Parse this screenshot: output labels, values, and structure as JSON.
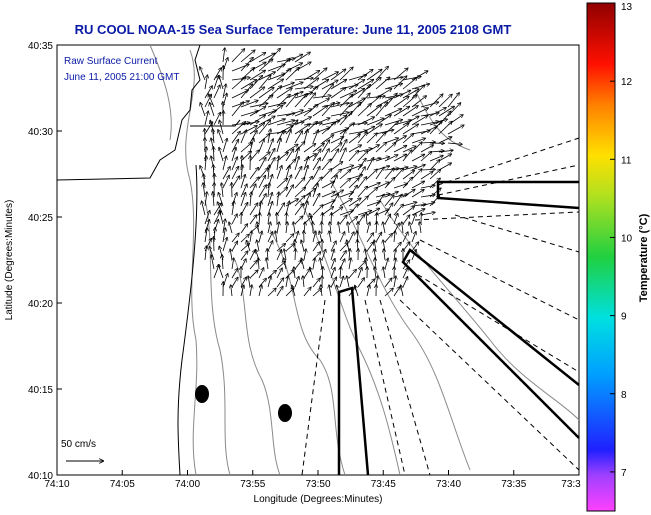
{
  "title": "RU COOL  NOAA-15  Sea Surface Temperature:  June 11, 2005 2108 GMT",
  "annotation": {
    "line1": "Raw Surface Current",
    "line2": "June 11, 2005 21:00 GMT",
    "scale_label": "50 cm/s"
  },
  "axes": {
    "xlabel": "Longitude (Degrees:Minutes)",
    "ylabel": "Latitude (Degrees:Minutes)",
    "xticks": [
      "74:10",
      "74:05",
      "74:00",
      "73:55",
      "73:50",
      "73:45",
      "73:40",
      "73:35",
      "73:3"
    ],
    "yticks": [
      "40:35",
      "40:30",
      "40:25",
      "40:20",
      "40:15",
      "40:10"
    ]
  },
  "colorbar": {
    "label": "Temperature (°C)",
    "ticks": [
      "13",
      "12",
      "11",
      "10",
      "9",
      "8",
      "7"
    ],
    "range": [
      6.5,
      13
    ]
  },
  "colors": {
    "title": "#0a1aa6",
    "contour": "#8a8a8a",
    "vectors": "#000000"
  }
}
